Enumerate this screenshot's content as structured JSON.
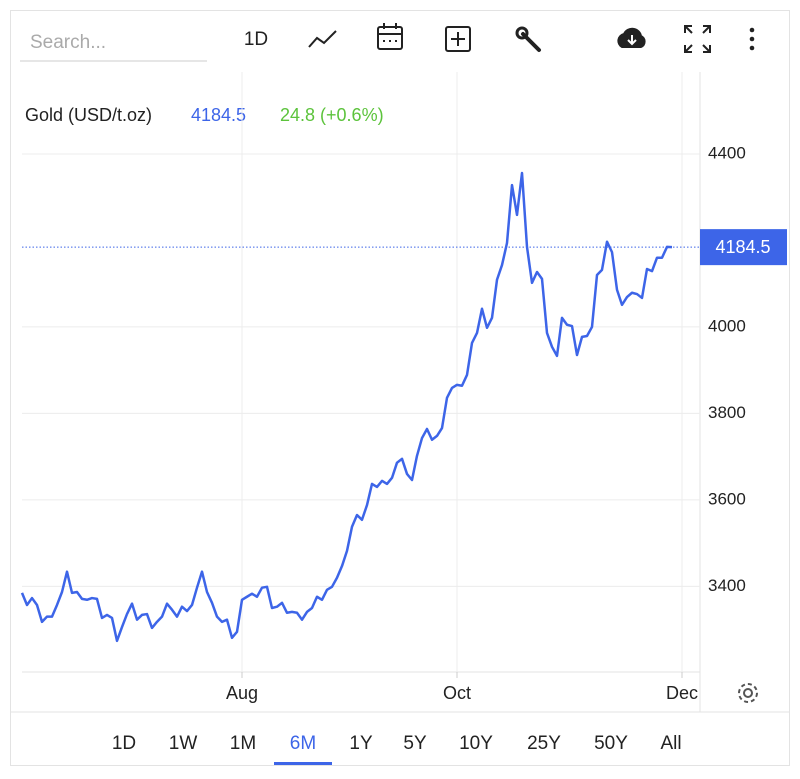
{
  "search_placeholder": "Search...",
  "toolbar": {
    "interval": "1D"
  },
  "ranges": [
    "1D",
    "1W",
    "1M",
    "6M",
    "1Y",
    "5Y",
    "10Y",
    "25Y",
    "50Y",
    "All"
  ],
  "selected_range": 3,
  "chart_data": {
    "type": "line",
    "title": "Gold (USD/t.oz)",
    "change": "24.8 (+0.6%)",
    "color": "#3d65e8",
    "change_color": "#5cc33c",
    "categories": [
      null,
      null,
      null,
      null,
      null,
      null,
      null,
      null,
      null,
      null,
      null,
      null,
      null,
      null,
      null,
      null,
      null,
      null,
      null,
      null,
      null,
      null,
      null,
      null,
      null,
      null,
      null,
      null,
      null,
      null,
      null,
      null,
      null,
      null,
      null,
      null,
      null,
      null,
      null,
      null,
      null,
      null,
      null,
      null,
      "Aug",
      null,
      null,
      null,
      null,
      null,
      null,
      null,
      null,
      null,
      null,
      null,
      null,
      null,
      null,
      null,
      null,
      null,
      null,
      null,
      null,
      null,
      null,
      null,
      null,
      null,
      null,
      null,
      null,
      null,
      null,
      null,
      null,
      null,
      null,
      null,
      null,
      null,
      null,
      null,
      null,
      null,
      null,
      "Oct",
      null,
      null,
      null,
      null,
      null,
      null,
      null,
      null,
      null,
      null,
      null,
      null,
      null,
      null,
      null,
      null,
      null,
      null,
      null,
      null,
      null,
      null,
      null,
      null,
      null,
      null,
      null,
      null,
      null,
      null,
      null,
      null,
      null,
      null,
      null,
      null,
      null,
      null,
      null,
      null,
      null,
      null,
      null,
      null,
      "Dec"
    ],
    "values": [
      3385,
      3357,
      3373,
      3357,
      3318,
      3330,
      3330,
      3357,
      3387,
      3434,
      3385,
      3387,
      3371,
      3369,
      3373,
      3371,
      3327,
      3334,
      3327,
      3274,
      3306,
      3336,
      3360,
      3323,
      3334,
      3336,
      3304,
      3318,
      3330,
      3360,
      3346,
      3330,
      3353,
      3343,
      3357,
      3397,
      3434,
      3387,
      3362,
      3330,
      3318,
      3323,
      3281,
      3295,
      3369,
      3376,
      3383,
      3376,
      3397,
      3399,
      3350,
      3353,
      3362,
      3339,
      3341,
      3339,
      3323,
      3341,
      3350,
      3376,
      3369,
      3392,
      3399,
      3420,
      3447,
      3482,
      3538,
      3565,
      3554,
      3588,
      3637,
      3630,
      3644,
      3637,
      3651,
      3686,
      3695,
      3660,
      3646,
      3702,
      3743,
      3764,
      3739,
      3748,
      3766,
      3836,
      3859,
      3866,
      3864,
      3889,
      3963,
      3986,
      4042,
      3998,
      4021,
      4109,
      4143,
      4194,
      4328,
      4259,
      4356,
      4185,
      4102,
      4127,
      4111,
      3986,
      3954,
      3933,
      4021,
      4005,
      4002,
      3935,
      3977,
      3979,
      4000,
      4120,
      4132,
      4197,
      4173,
      4086,
      4051,
      4069,
      4079,
      4076,
      4067,
      4134,
      4129,
      4160,
      4160,
      4185,
      4184.5,
      null,
      null
    ],
    "ylim": [
      3202,
      4571
    ],
    "yticks": [
      3400,
      3600,
      3800,
      4000,
      4400
    ],
    "grid": true
  }
}
